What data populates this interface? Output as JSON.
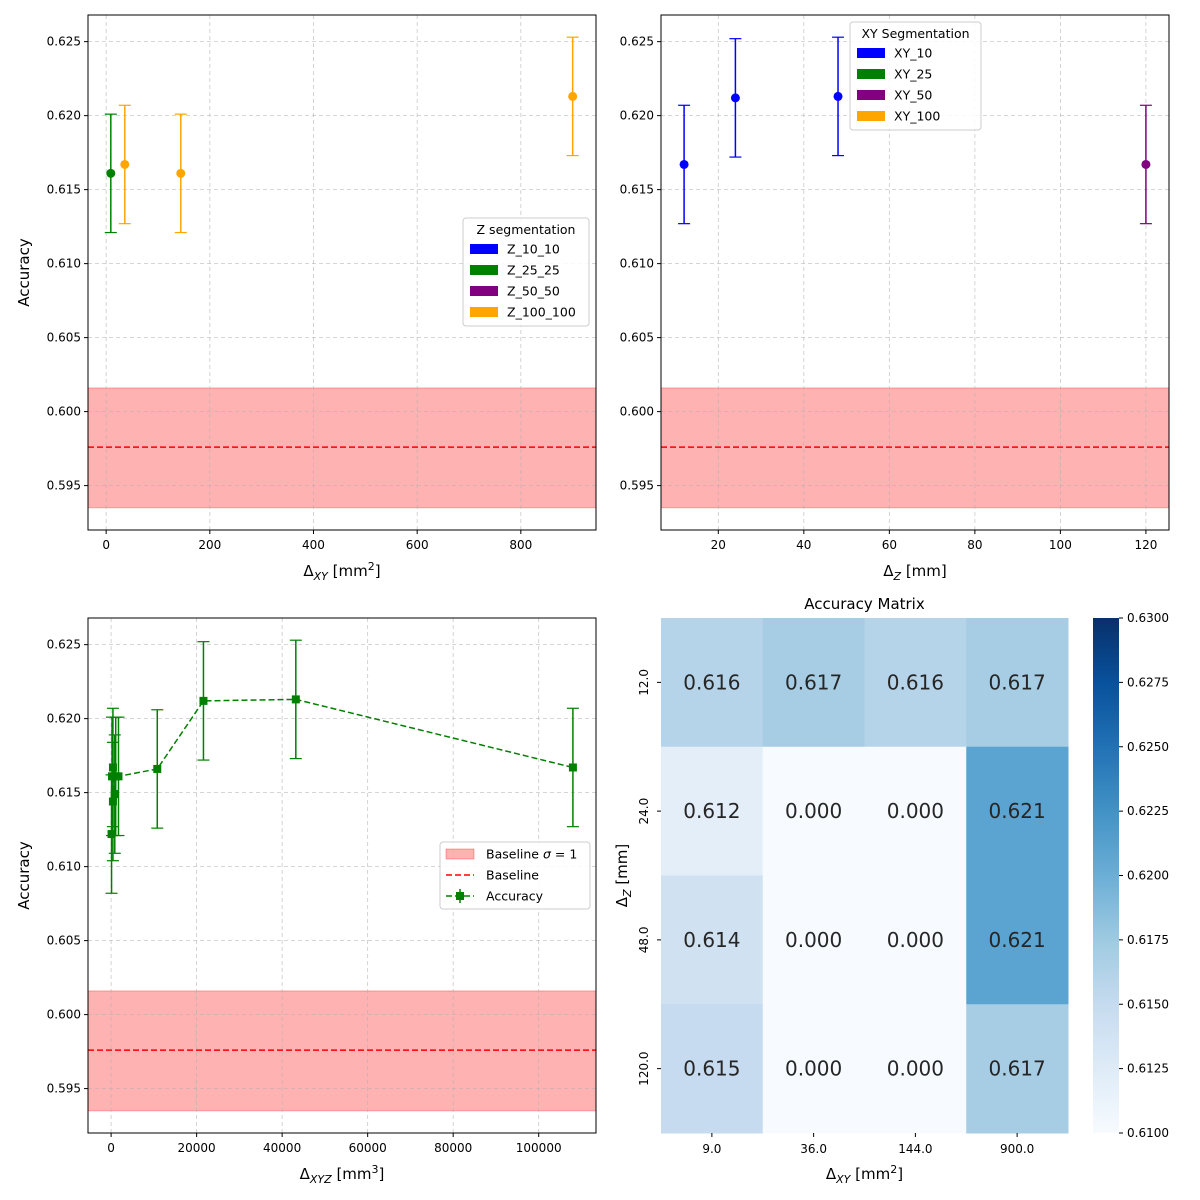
{
  "chart_data": [
    {
      "type": "scatter",
      "xlabel": "Δ_XY [mm²]",
      "xlabel_parts": {
        "main": "Δ",
        "sub": "XY",
        "unit_open": " [mm",
        "sup": "2",
        "unit_close": "]"
      },
      "ylabel": "Accuracy",
      "xlim": [
        -35,
        945
      ],
      "ylim": [
        0.592,
        0.6268
      ],
      "xticks": [
        0,
        200,
        400,
        600,
        800
      ],
      "yticks": [
        0.595,
        0.6,
        0.605,
        0.61,
        0.615,
        0.62,
        0.625
      ],
      "ytick_labels": [
        "0.595",
        "0.600",
        "0.605",
        "0.610",
        "0.615",
        "0.620",
        "0.625"
      ],
      "grid": true,
      "baseline": {
        "value": 0.5976,
        "sigma_low": 0.5935,
        "sigma_high": 0.6016
      },
      "legend": {
        "title": "Z segmentation",
        "placement": "center-right",
        "entries": [
          {
            "label": "Z_10_10",
            "color": "#0000ff"
          },
          {
            "label": "Z_25_25",
            "color": "#008000"
          },
          {
            "label": "Z_50_50",
            "color": "#800080"
          },
          {
            "label": "Z_100_100",
            "color": "#ffa500"
          }
        ]
      },
      "points": [
        {
          "x": 9,
          "y": 0.6161,
          "err": 0.004,
          "color": "#008000"
        },
        {
          "x": 36,
          "y": 0.6167,
          "err": 0.004,
          "color": "#ffa500"
        },
        {
          "x": 144,
          "y": 0.6161,
          "err": 0.004,
          "color": "#ffa500"
        },
        {
          "x": 900,
          "y": 0.6213,
          "err": 0.004,
          "color": "#ffa500"
        }
      ]
    },
    {
      "type": "scatter",
      "xlabel": "Δ_Z [mm]",
      "xlabel_parts": {
        "main": "Δ",
        "sub": "Z",
        "unit_open": " [mm]",
        "sup": "",
        "unit_close": ""
      },
      "ylabel": "",
      "xlim": [
        6.6,
        125.4
      ],
      "ylim": [
        0.592,
        0.6268
      ],
      "xticks": [
        20,
        40,
        60,
        80,
        100,
        120
      ],
      "yticks": [
        0.595,
        0.6,
        0.605,
        0.61,
        0.615,
        0.62,
        0.625
      ],
      "ytick_labels": [
        "0.595",
        "0.600",
        "0.605",
        "0.610",
        "0.615",
        "0.620",
        "0.625"
      ],
      "grid": true,
      "baseline": {
        "value": 0.5976,
        "sigma_low": 0.5935,
        "sigma_high": 0.6016
      },
      "legend": {
        "title": "XY Segmentation",
        "placement": "top-center",
        "entries": [
          {
            "label": "XY_10",
            "color": "#0000ff"
          },
          {
            "label": "XY_25",
            "color": "#008000"
          },
          {
            "label": "XY_50",
            "color": "#800080"
          },
          {
            "label": "XY_100",
            "color": "#ffa500"
          }
        ]
      },
      "points": [
        {
          "x": 12,
          "y": 0.6167,
          "err": 0.004,
          "color": "#0000ff"
        },
        {
          "x": 24,
          "y": 0.6212,
          "err": 0.004,
          "color": "#0000ff"
        },
        {
          "x": 48,
          "y": 0.6213,
          "err": 0.004,
          "color": "#0000ff"
        },
        {
          "x": 120,
          "y": 0.6167,
          "err": 0.004,
          "color": "#800080"
        }
      ]
    },
    {
      "type": "line",
      "xlabel": "Δ_XYZ [mm³]",
      "xlabel_parts": {
        "main": "Δ",
        "sub": "XYZ",
        "unit_open": " [mm",
        "sup": "3",
        "unit_close": "]"
      },
      "ylabel": "Accuracy",
      "xlim": [
        -5400,
        113400
      ],
      "ylim": [
        0.592,
        0.6268
      ],
      "xticks": [
        0,
        20000,
        40000,
        60000,
        80000,
        100000
      ],
      "yticks": [
        0.595,
        0.6,
        0.605,
        0.61,
        0.615,
        0.62,
        0.625
      ],
      "ytick_labels": [
        "0.595",
        "0.600",
        "0.605",
        "0.610",
        "0.615",
        "0.620",
        "0.625"
      ],
      "grid": true,
      "baseline": {
        "value": 0.5976,
        "sigma_low": 0.5935,
        "sigma_high": 0.6016
      },
      "legend": {
        "placement": "center-right",
        "entries": [
          {
            "label_pre": "Baseline ",
            "label_italic": "σ",
            "label_post": " = 1",
            "kind": "patch",
            "color": "#ff0000"
          },
          {
            "label": "Baseline",
            "kind": "dashed",
            "color": "#ff0000"
          },
          {
            "label": "Accuracy",
            "kind": "errorline",
            "color": "#008000"
          }
        ]
      },
      "series": [
        {
          "name": "Accuracy",
          "color": "#008000",
          "x": [
            108,
            216,
            432,
            432,
            864,
            1080,
            1728,
            10800,
            21600,
            43200,
            108000
          ],
          "y": [
            0.6122,
            0.6161,
            0.6144,
            0.6167,
            0.6149,
            0.6161,
            0.6161,
            0.6166,
            0.6212,
            0.6213,
            0.6167
          ],
          "err": [
            0.004,
            0.004,
            0.004,
            0.004,
            0.004,
            0.004,
            0.004,
            0.004,
            0.004,
            0.004,
            0.004
          ]
        }
      ]
    },
    {
      "type": "heatmap",
      "title": "Accuracy Matrix",
      "xlabel": "Δ_XY [mm²]",
      "xlabel_parts": {
        "main": "Δ",
        "sub": "XY",
        "unit_open": " [mm",
        "sup": "2",
        "unit_close": "]"
      },
      "ylabel": "Δ_Z [mm]",
      "ylabel_parts": {
        "main": "Δ",
        "sub": "Z",
        "unit_open": " [mm]",
        "sup": "",
        "unit_close": ""
      },
      "x_categories": [
        "9.0",
        "36.0",
        "144.0",
        "900.0"
      ],
      "y_categories": [
        "12.0",
        "24.0",
        "48.0",
        "120.0"
      ],
      "values": [
        [
          0.616,
          0.617,
          0.616,
          0.617
        ],
        [
          0.612,
          0.0,
          0.0,
          0.621
        ],
        [
          0.614,
          0.0,
          0.0,
          0.621
        ],
        [
          0.615,
          0.0,
          0.0,
          0.617
        ]
      ],
      "cell_labels": [
        [
          "0.616",
          "0.617",
          "0.616",
          "0.617"
        ],
        [
          "0.612",
          "0.000",
          "0.000",
          "0.621"
        ],
        [
          "0.614",
          "0.000",
          "0.000",
          "0.621"
        ],
        [
          "0.615",
          "0.000",
          "0.000",
          "0.617"
        ]
      ],
      "colormap": "Blues",
      "vmin": 0.61,
      "vmax": 0.63,
      "colorbar_ticks": [
        0.61,
        0.6125,
        0.615,
        0.6175,
        0.62,
        0.6225,
        0.625,
        0.6275,
        0.63
      ],
      "colorbar_tick_labels": [
        "0.6100",
        "0.6125",
        "0.6150",
        "0.6175",
        "0.6200",
        "0.6225",
        "0.6250",
        "0.6275",
        "0.6300"
      ]
    }
  ]
}
